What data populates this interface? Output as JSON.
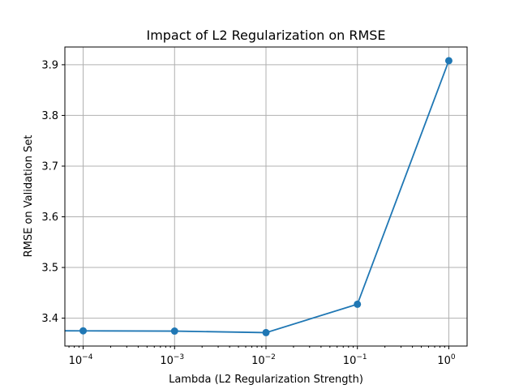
{
  "chart_data": {
    "type": "line",
    "title": "Impact of L2 Regularization on RMSE",
    "xlabel": "Lambda (L2 Regularization Strength)",
    "ylabel": "RMSE on Validation Set",
    "xscale": "log",
    "grid": true,
    "x": [
      0.0001,
      0.001,
      0.01,
      0.1,
      1
    ],
    "series": [
      {
        "values": [
          3.375,
          3.3745,
          3.3715,
          3.4275,
          3.908
        ]
      }
    ],
    "xlim": [
      6.31e-05,
      1.585
    ],
    "ylim": [
      3.345,
      3.935
    ],
    "xticks": [
      {
        "value": 0.0001,
        "base": "10",
        "exp": "−4"
      },
      {
        "value": 0.001,
        "base": "10",
        "exp": "−3"
      },
      {
        "value": 0.01,
        "base": "10",
        "exp": "−2"
      },
      {
        "value": 0.1,
        "base": "10",
        "exp": "−1"
      },
      {
        "value": 1,
        "base": "10",
        "exp": "0"
      }
    ],
    "yticks": [
      "3.4",
      "3.5",
      "3.6",
      "3.7",
      "3.8",
      "3.9"
    ],
    "color": "#1f77b4"
  }
}
